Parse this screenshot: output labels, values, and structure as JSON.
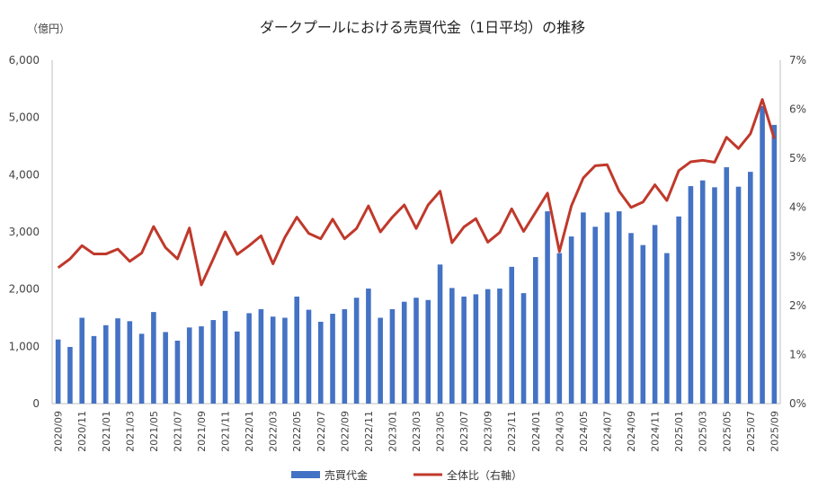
{
  "chart_data": {
    "type": "bar",
    "title": "ダークプールにおける売買代金（1日平均）の推移",
    "y_left_unit": "（億円）",
    "y_left_ticks": [
      "0",
      "1,000",
      "2,000",
      "3,000",
      "4,000",
      "5,000",
      "6,000"
    ],
    "y_right_ticks": [
      "0%",
      "1%",
      "2%",
      "3%",
      "4%",
      "5%",
      "6%",
      "7%"
    ],
    "ylim_left": [
      0,
      6000
    ],
    "ylim_right": [
      0,
      7
    ],
    "grid": false,
    "legend_position": "bottom",
    "categories": [
      "2020/09",
      "2020/10",
      "2020/11",
      "2020/12",
      "2021/01",
      "2021/02",
      "2021/03",
      "2021/04",
      "2021/05",
      "2021/06",
      "2021/07",
      "2021/08",
      "2021/09",
      "2021/10",
      "2021/11",
      "2021/12",
      "2022/01",
      "2022/02",
      "2022/03",
      "2022/04",
      "2022/05",
      "2022/06",
      "2022/07",
      "2022/08",
      "2022/09",
      "2022/10",
      "2022/11",
      "2022/12",
      "2023/01",
      "2023/02",
      "2023/03",
      "2023/04",
      "2023/05",
      "2023/06",
      "2023/07",
      "2023/08",
      "2023/09",
      "2023/10",
      "2023/11",
      "2023/12",
      "2024/01",
      "2024/02",
      "2024/03",
      "2024/04",
      "2024/05",
      "2024/06",
      "2024/07",
      "2024/08",
      "2024/09",
      "2024/10",
      "2024/11",
      "2024/12",
      "2025/01",
      "2025/02",
      "2025/03",
      "2025/04",
      "2025/05",
      "2025/06",
      "2025/07",
      "2025/08",
      "2025/09"
    ],
    "x_tick_labels": [
      "2020/09",
      "2020/11",
      "2021/01",
      "2021/03",
      "2021/05",
      "2021/07",
      "2021/09",
      "2021/11",
      "2022/01",
      "2022/03",
      "2022/05",
      "2022/07",
      "2022/09",
      "2022/11",
      "2023/01",
      "2023/03",
      "2023/05",
      "2023/07",
      "2023/09",
      "2023/11",
      "2024/01",
      "2024/03",
      "2024/05",
      "2024/07",
      "2024/09",
      "2024/11",
      "2025/01",
      "2025/03",
      "2025/05",
      "2025/07",
      "2025/09"
    ],
    "series": [
      {
        "name": "売買代金",
        "type": "bar",
        "axis": "left",
        "color": "#4472C4",
        "values": [
          1120,
          990,
          1500,
          1180,
          1370,
          1490,
          1440,
          1220,
          1600,
          1250,
          1100,
          1330,
          1350,
          1460,
          1620,
          1260,
          1580,
          1650,
          1520,
          1500,
          1870,
          1640,
          1430,
          1570,
          1650,
          1850,
          2010,
          1500,
          1650,
          1780,
          1850,
          1810,
          2430,
          2020,
          1870,
          1910,
          2000,
          2010,
          2390,
          1930,
          2560,
          3360,
          2630,
          2920,
          3340,
          3090,
          3340,
          3360,
          2980,
          2770,
          3120,
          2630,
          3270,
          3800,
          3900,
          3780,
          4130,
          3790,
          4050,
          5200,
          4870
        ]
      },
      {
        "name": "全体比（右軸）",
        "type": "line",
        "axis": "right",
        "color": "#C0392B",
        "values": [
          2.77,
          2.95,
          3.22,
          3.05,
          3.05,
          3.15,
          2.9,
          3.07,
          3.61,
          3.18,
          2.95,
          3.58,
          2.42,
          2.95,
          3.5,
          3.04,
          3.22,
          3.42,
          2.85,
          3.39,
          3.8,
          3.47,
          3.36,
          3.76,
          3.36,
          3.57,
          4.03,
          3.5,
          3.8,
          4.05,
          3.57,
          4.05,
          4.33,
          3.28,
          3.6,
          3.77,
          3.29,
          3.49,
          3.97,
          3.51,
          3.9,
          4.29,
          3.1,
          4.03,
          4.6,
          4.85,
          4.87,
          4.33,
          4.0,
          4.11,
          4.46,
          4.14,
          4.75,
          4.93,
          4.96,
          4.92,
          5.43,
          5.2,
          5.5,
          6.2,
          5.4
        ]
      }
    ]
  }
}
